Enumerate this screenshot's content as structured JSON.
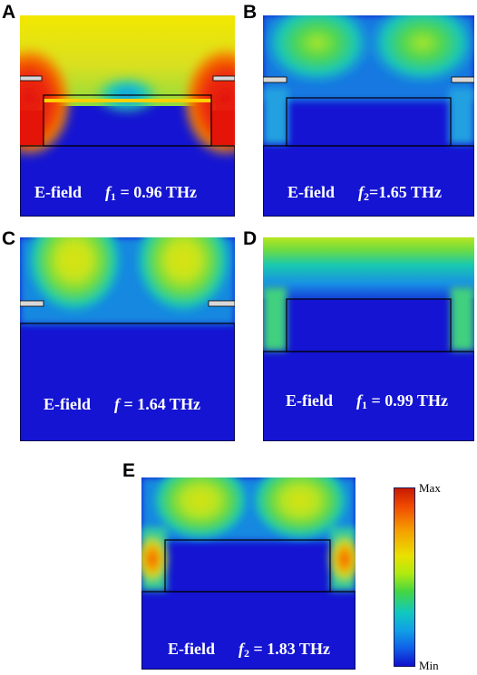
{
  "panels": [
    {
      "letter": "A",
      "field_label": "E-field",
      "freq_symbol": "f",
      "freq_subscript": "1",
      "freq_value": "= 0.96 THz"
    },
    {
      "letter": "B",
      "field_label": "E-field",
      "freq_symbol": "f",
      "freq_subscript": "2",
      "freq_value": "=1.65 THz"
    },
    {
      "letter": "C",
      "field_label": "E-field",
      "freq_symbol": "f",
      "freq_subscript": "",
      "freq_value": "= 1.64 THz"
    },
    {
      "letter": "D",
      "field_label": "E-field",
      "freq_symbol": "f",
      "freq_subscript": "1",
      "freq_value": "= 0.99 THz"
    },
    {
      "letter": "E",
      "field_label": "E-field",
      "freq_symbol": "f",
      "freq_subscript": "2",
      "freq_value": "= 1.83 THz"
    }
  ],
  "colorbar": {
    "max_label": "Max",
    "min_label": "Min"
  },
  "colors": {
    "background": "#1414d2",
    "outline": "#000000",
    "electrode": "#d8d8d8"
  }
}
